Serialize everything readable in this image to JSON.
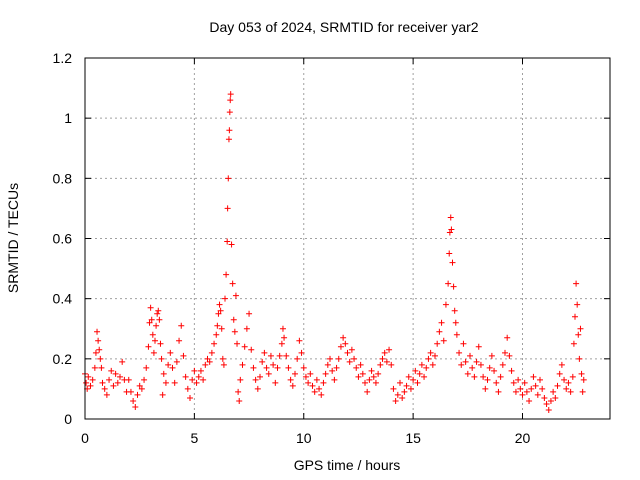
{
  "chart_data": {
    "type": "scatter",
    "title": "Day 053 of 2024, SRMTID for receiver yar2",
    "xlabel": "GPS time / hours",
    "ylabel": "SRMTID / TECUs",
    "xlim": [
      0,
      24
    ],
    "ylim": [
      0,
      1.2
    ],
    "x_ticks": [
      0,
      5,
      10,
      15,
      20
    ],
    "x_tick_labels": [
      "0",
      "5",
      "10",
      "15",
      "20"
    ],
    "y_ticks": [
      0,
      0.2,
      0.4,
      0.6,
      0.8,
      1.0,
      1.2
    ],
    "y_tick_labels": [
      "0",
      "0.2",
      "0.4",
      "0.6",
      "0.8",
      "1",
      "1.2"
    ],
    "grid": true,
    "marker": "plus",
    "marker_color": "#ff0000",
    "series": [
      {
        "name": "yar2",
        "points": [
          [
            0.0,
            0.15
          ],
          [
            0.05,
            0.12
          ],
          [
            0.1,
            0.1
          ],
          [
            0.15,
            0.14
          ],
          [
            0.25,
            0.11
          ],
          [
            0.35,
            0.13
          ],
          [
            0.45,
            0.17
          ],
          [
            0.5,
            0.22
          ],
          [
            0.55,
            0.29
          ],
          [
            0.6,
            0.26
          ],
          [
            0.65,
            0.23
          ],
          [
            0.7,
            0.2
          ],
          [
            0.75,
            0.17
          ],
          [
            0.8,
            0.12
          ],
          [
            0.9,
            0.1
          ],
          [
            1.0,
            0.08
          ],
          [
            1.1,
            0.13
          ],
          [
            1.2,
            0.16
          ],
          [
            1.3,
            0.11
          ],
          [
            1.4,
            0.15
          ],
          [
            1.5,
            0.12
          ],
          [
            1.6,
            0.14
          ],
          [
            1.7,
            0.19
          ],
          [
            1.8,
            0.13
          ],
          [
            1.9,
            0.09
          ],
          [
            2.0,
            0.13
          ],
          [
            2.1,
            0.09
          ],
          [
            2.2,
            0.06
          ],
          [
            2.3,
            0.04
          ],
          [
            2.4,
            0.08
          ],
          [
            2.5,
            0.11
          ],
          [
            2.6,
            0.1
          ],
          [
            2.7,
            0.13
          ],
          [
            2.8,
            0.17
          ],
          [
            2.9,
            0.24
          ],
          [
            2.95,
            0.32
          ],
          [
            3.0,
            0.37
          ],
          [
            3.05,
            0.33
          ],
          [
            3.1,
            0.28
          ],
          [
            3.15,
            0.22
          ],
          [
            3.2,
            0.26
          ],
          [
            3.25,
            0.31
          ],
          [
            3.3,
            0.35
          ],
          [
            3.35,
            0.36
          ],
          [
            3.4,
            0.33
          ],
          [
            3.45,
            0.25
          ],
          [
            3.5,
            0.2
          ],
          [
            3.55,
            0.08
          ],
          [
            3.6,
            0.15
          ],
          [
            3.7,
            0.12
          ],
          [
            3.8,
            0.18
          ],
          [
            3.9,
            0.22
          ],
          [
            4.0,
            0.17
          ],
          [
            4.1,
            0.12
          ],
          [
            4.2,
            0.19
          ],
          [
            4.3,
            0.26
          ],
          [
            4.4,
            0.31
          ],
          [
            4.5,
            0.21
          ],
          [
            4.6,
            0.14
          ],
          [
            4.7,
            0.1
          ],
          [
            4.8,
            0.07
          ],
          [
            4.9,
            0.13
          ],
          [
            5.0,
            0.16
          ],
          [
            5.1,
            0.12
          ],
          [
            5.2,
            0.14
          ],
          [
            5.3,
            0.16
          ],
          [
            5.4,
            0.13
          ],
          [
            5.5,
            0.18
          ],
          [
            5.6,
            0.2
          ],
          [
            5.7,
            0.19
          ],
          [
            5.8,
            0.22
          ],
          [
            5.9,
            0.25
          ],
          [
            6.0,
            0.28
          ],
          [
            6.05,
            0.31
          ],
          [
            6.1,
            0.35
          ],
          [
            6.15,
            0.38
          ],
          [
            6.2,
            0.36
          ],
          [
            6.25,
            0.3
          ],
          [
            6.3,
            0.2
          ],
          [
            6.35,
            0.18
          ],
          [
            6.4,
            0.4
          ],
          [
            6.45,
            0.48
          ],
          [
            6.5,
            0.59
          ],
          [
            6.52,
            0.7
          ],
          [
            6.55,
            0.8
          ],
          [
            6.58,
            0.93
          ],
          [
            6.6,
            0.96
          ],
          [
            6.62,
            1.02
          ],
          [
            6.64,
            1.06
          ],
          [
            6.66,
            1.08
          ],
          [
            6.7,
            0.58
          ],
          [
            6.75,
            0.45
          ],
          [
            6.8,
            0.33
          ],
          [
            6.85,
            0.29
          ],
          [
            6.9,
            0.41
          ],
          [
            6.95,
            0.25
          ],
          [
            7.0,
            0.09
          ],
          [
            7.05,
            0.06
          ],
          [
            7.1,
            0.13
          ],
          [
            7.2,
            0.18
          ],
          [
            7.3,
            0.24
          ],
          [
            7.4,
            0.3
          ],
          [
            7.5,
            0.35
          ],
          [
            7.6,
            0.23
          ],
          [
            7.7,
            0.17
          ],
          [
            7.8,
            0.13
          ],
          [
            7.9,
            0.1
          ],
          [
            8.0,
            0.14
          ],
          [
            8.1,
            0.19
          ],
          [
            8.2,
            0.22
          ],
          [
            8.3,
            0.17
          ],
          [
            8.4,
            0.15
          ],
          [
            8.5,
            0.21
          ],
          [
            8.6,
            0.18
          ],
          [
            8.7,
            0.12
          ],
          [
            8.8,
            0.17
          ],
          [
            8.9,
            0.21
          ],
          [
            9.0,
            0.25
          ],
          [
            9.05,
            0.3
          ],
          [
            9.1,
            0.27
          ],
          [
            9.2,
            0.21
          ],
          [
            9.3,
            0.17
          ],
          [
            9.4,
            0.13
          ],
          [
            9.5,
            0.11
          ],
          [
            9.6,
            0.15
          ],
          [
            9.7,
            0.2
          ],
          [
            9.8,
            0.26
          ],
          [
            9.9,
            0.22
          ],
          [
            10.0,
            0.17
          ],
          [
            10.1,
            0.14
          ],
          [
            10.2,
            0.12
          ],
          [
            10.3,
            0.15
          ],
          [
            10.4,
            0.11
          ],
          [
            10.5,
            0.09
          ],
          [
            10.6,
            0.13
          ],
          [
            10.7,
            0.1
          ],
          [
            10.8,
            0.08
          ],
          [
            10.9,
            0.12
          ],
          [
            11.0,
            0.15
          ],
          [
            11.1,
            0.18
          ],
          [
            11.2,
            0.2
          ],
          [
            11.3,
            0.16
          ],
          [
            11.4,
            0.13
          ],
          [
            11.5,
            0.17
          ],
          [
            11.6,
            0.2
          ],
          [
            11.7,
            0.24
          ],
          [
            11.8,
            0.27
          ],
          [
            11.9,
            0.25
          ],
          [
            12.0,
            0.22
          ],
          [
            12.1,
            0.19
          ],
          [
            12.2,
            0.23
          ],
          [
            12.3,
            0.2
          ],
          [
            12.4,
            0.17
          ],
          [
            12.5,
            0.14
          ],
          [
            12.6,
            0.18
          ],
          [
            12.7,
            0.15
          ],
          [
            12.8,
            0.12
          ],
          [
            12.9,
            0.09
          ],
          [
            13.0,
            0.13
          ],
          [
            13.1,
            0.16
          ],
          [
            13.2,
            0.14
          ],
          [
            13.3,
            0.12
          ],
          [
            13.4,
            0.15
          ],
          [
            13.5,
            0.18
          ],
          [
            13.6,
            0.2
          ],
          [
            13.7,
            0.22
          ],
          [
            13.8,
            0.19
          ],
          [
            13.9,
            0.23
          ],
          [
            14.0,
            0.18
          ],
          [
            14.1,
            0.1
          ],
          [
            14.2,
            0.06
          ],
          [
            14.3,
            0.08
          ],
          [
            14.4,
            0.12
          ],
          [
            14.5,
            0.07
          ],
          [
            14.6,
            0.09
          ],
          [
            14.7,
            0.11
          ],
          [
            14.8,
            0.14
          ],
          [
            14.9,
            0.1
          ],
          [
            15.0,
            0.13
          ],
          [
            15.1,
            0.16
          ],
          [
            15.2,
            0.12
          ],
          [
            15.3,
            0.15
          ],
          [
            15.4,
            0.18
          ],
          [
            15.5,
            0.14
          ],
          [
            15.6,
            0.17
          ],
          [
            15.7,
            0.2
          ],
          [
            15.8,
            0.22
          ],
          [
            15.9,
            0.18
          ],
          [
            16.0,
            0.21
          ],
          [
            16.1,
            0.25
          ],
          [
            16.2,
            0.29
          ],
          [
            16.3,
            0.32
          ],
          [
            16.4,
            0.26
          ],
          [
            16.5,
            0.38
          ],
          [
            16.6,
            0.45
          ],
          [
            16.65,
            0.55
          ],
          [
            16.68,
            0.62
          ],
          [
            16.72,
            0.67
          ],
          [
            16.75,
            0.63
          ],
          [
            16.8,
            0.52
          ],
          [
            16.85,
            0.44
          ],
          [
            16.9,
            0.36
          ],
          [
            16.95,
            0.32
          ],
          [
            17.0,
            0.28
          ],
          [
            17.1,
            0.22
          ],
          [
            17.2,
            0.18
          ],
          [
            17.3,
            0.25
          ],
          [
            17.4,
            0.19
          ],
          [
            17.5,
            0.15
          ],
          [
            17.6,
            0.21
          ],
          [
            17.7,
            0.17
          ],
          [
            17.8,
            0.14
          ],
          [
            17.9,
            0.19
          ],
          [
            18.0,
            0.24
          ],
          [
            18.1,
            0.18
          ],
          [
            18.2,
            0.14
          ],
          [
            18.3,
            0.1
          ],
          [
            18.4,
            0.13
          ],
          [
            18.5,
            0.17
          ],
          [
            18.6,
            0.21
          ],
          [
            18.7,
            0.16
          ],
          [
            18.8,
            0.12
          ],
          [
            18.9,
            0.09
          ],
          [
            19.0,
            0.14
          ],
          [
            19.1,
            0.18
          ],
          [
            19.2,
            0.22
          ],
          [
            19.3,
            0.27
          ],
          [
            19.4,
            0.21
          ],
          [
            19.5,
            0.16
          ],
          [
            19.6,
            0.12
          ],
          [
            19.7,
            0.09
          ],
          [
            19.8,
            0.13
          ],
          [
            19.9,
            0.1
          ],
          [
            20.0,
            0.08
          ],
          [
            20.1,
            0.12
          ],
          [
            20.2,
            0.09
          ],
          [
            20.3,
            0.06
          ],
          [
            20.4,
            0.1
          ],
          [
            20.5,
            0.14
          ],
          [
            20.6,
            0.11
          ],
          [
            20.7,
            0.08
          ],
          [
            20.8,
            0.13
          ],
          [
            20.9,
            0.1
          ],
          [
            21.0,
            0.07
          ],
          [
            21.1,
            0.05
          ],
          [
            21.2,
            0.03
          ],
          [
            21.3,
            0.06
          ],
          [
            21.4,
            0.09
          ],
          [
            21.5,
            0.07
          ],
          [
            21.6,
            0.11
          ],
          [
            21.7,
            0.15
          ],
          [
            21.8,
            0.18
          ],
          [
            21.9,
            0.13
          ],
          [
            22.0,
            0.1
          ],
          [
            22.1,
            0.12
          ],
          [
            22.2,
            0.09
          ],
          [
            22.3,
            0.14
          ],
          [
            22.35,
            0.25
          ],
          [
            22.4,
            0.34
          ],
          [
            22.45,
            0.45
          ],
          [
            22.5,
            0.38
          ],
          [
            22.55,
            0.28
          ],
          [
            22.6,
            0.2
          ],
          [
            22.65,
            0.3
          ],
          [
            22.7,
            0.15
          ],
          [
            22.75,
            0.09
          ],
          [
            22.8,
            0.13
          ]
        ]
      }
    ]
  }
}
